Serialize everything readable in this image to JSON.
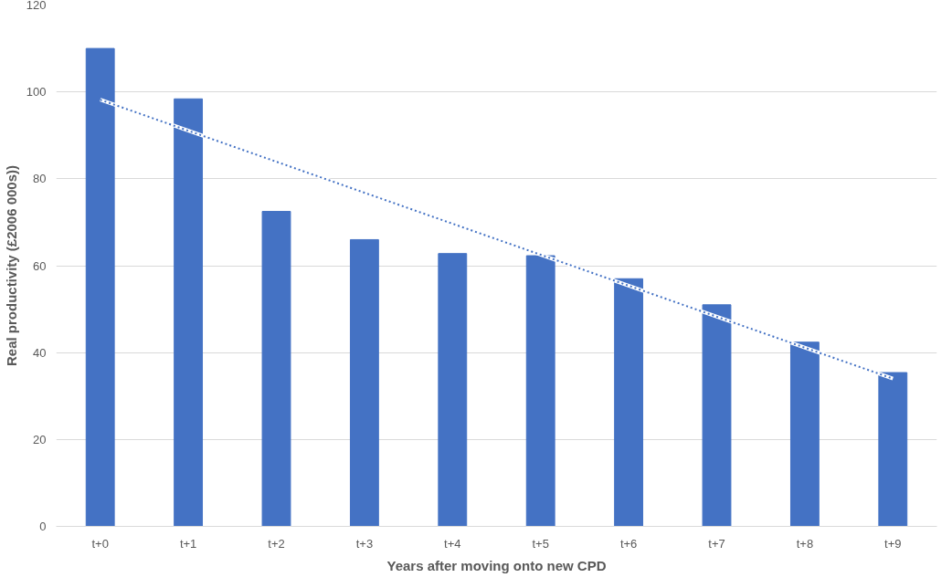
{
  "chart_data": {
    "type": "bar",
    "xlabel": "Years after moving onto new CPD",
    "ylabel": "Real productivity (£2006 000s))",
    "categories": [
      "t+0",
      "t+1",
      "t+2",
      "t+3",
      "t+4",
      "t+5",
      "t+6",
      "t+7",
      "t+8",
      "t+9"
    ],
    "series": [
      {
        "color": "#4472c4",
        "values": [
          110.0,
          98.4,
          72.5,
          66.0,
          62.8,
          62.3,
          57.0,
          51.0,
          42.4,
          35.4
        ]
      },
      {
        "type": "line",
        "color": "#4472c4",
        "line_style": "dotted",
        "x": [
          "t+0",
          "t+9"
        ],
        "values": [
          98.2,
          34.0
        ]
      }
    ],
    "ylim": [
      0,
      120
    ],
    "yticks": [
      0,
      20,
      40,
      60,
      80,
      100,
      120
    ],
    "grid": "y"
  }
}
